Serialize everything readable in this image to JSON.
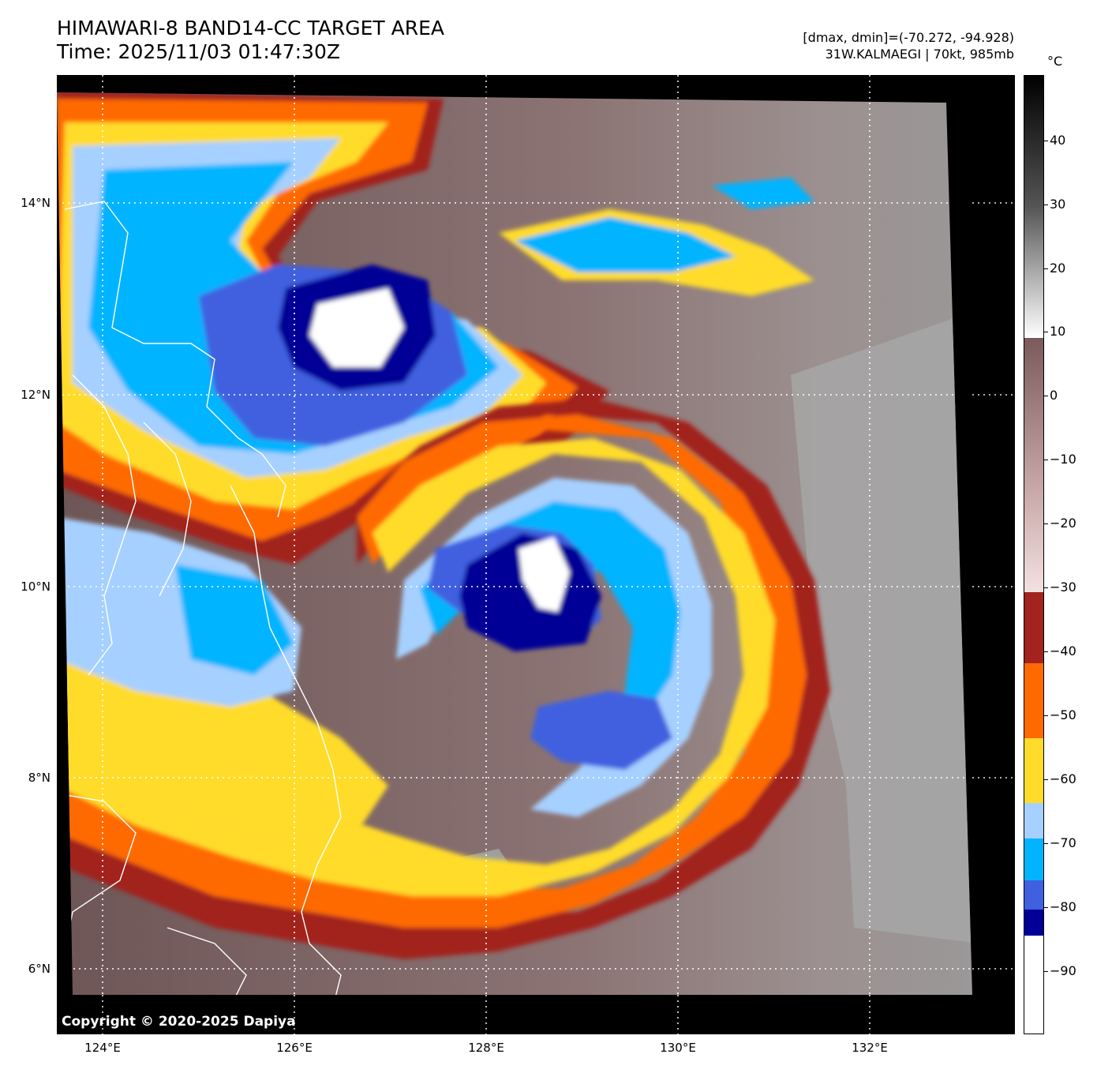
{
  "header": {
    "title_line1": "HIMAWARI-8 BAND14-CC TARGET AREA",
    "title_line2": "Time: 2025/11/03 01:47:30Z",
    "info_line1": "[dmax, dmin]=(-70.272, -94.928)",
    "info_line2": "31W.KALMAEGI | 70kt, 985mb"
  },
  "map": {
    "lat_labels": [
      "14°N",
      "12°N",
      "10°N",
      "8°N",
      "6°N"
    ],
    "lon_labels": [
      "124°E",
      "126°E",
      "128°E",
      "130°E",
      "132°E"
    ],
    "copyright": "Copyright © 2020-2025 Dapiya",
    "colors": {
      "background": "#000000",
      "cloud_warm": "#8a6e6e",
      "clear_sea": "#9a9a9a",
      "coast": "#ffffff",
      "band_-40": "#a2231f",
      "band_-50": "#ff6a00",
      "band_-60": "#ffdc2a",
      "band_-65": "#a6d0ff",
      "band_-70": "#00b4ff",
      "band_-80": "#4060e0",
      "band_-85": "#000096",
      "band_-90": "#ffffff"
    }
  },
  "colorbar": {
    "unit": "°C",
    "ticks": [
      "40",
      "30",
      "20",
      "10",
      "0",
      "−10",
      "−20",
      "−30",
      "−40",
      "−50",
      "−60",
      "−70",
      "−80",
      "−90"
    ]
  }
}
